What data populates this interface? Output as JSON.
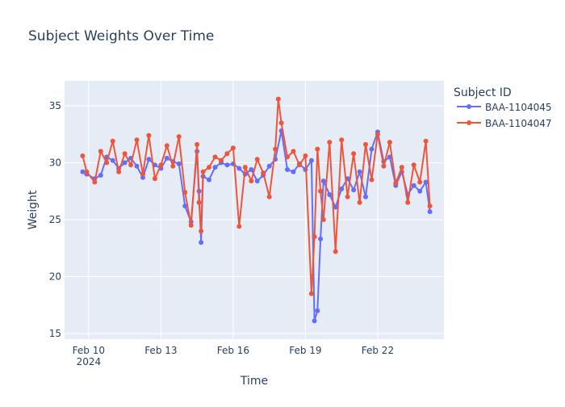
{
  "chart_data": {
    "type": "line",
    "title": "Subject Weights Over Time",
    "xlabel": "Time",
    "ylabel": "Weight",
    "xlim": [
      "2024-02-09 00:00",
      "2024-02-24 18:00"
    ],
    "ylim": [
      14.5,
      37.2
    ],
    "x_ticks": [
      {
        "value": "2024-02-10 00:00",
        "label": "Feb 10",
        "sublabel": "2024"
      },
      {
        "value": "2024-02-13 00:00",
        "label": "Feb 13"
      },
      {
        "value": "2024-02-16 00:00",
        "label": "Feb 16"
      },
      {
        "value": "2024-02-19 00:00",
        "label": "Feb 19"
      },
      {
        "value": "2024-02-22 00:00",
        "label": "Feb 22"
      }
    ],
    "y_ticks": [
      15,
      20,
      25,
      30,
      35
    ],
    "grid": true,
    "legend": {
      "title": "Subject ID",
      "position": "right"
    },
    "series": [
      {
        "name": "BAA-1104045",
        "color": "#636efa",
        "x": [
          "2024-02-09 18:00",
          "2024-02-09 22:00",
          "2024-02-10 06:00",
          "2024-02-10 12:00",
          "2024-02-10 18:00",
          "2024-02-11 00:00",
          "2024-02-11 06:00",
          "2024-02-11 12:00",
          "2024-02-11 18:00",
          "2024-02-12 00:00",
          "2024-02-12 06:00",
          "2024-02-12 12:00",
          "2024-02-12 18:00",
          "2024-02-13 00:00",
          "2024-02-13 06:00",
          "2024-02-13 12:00",
          "2024-02-13 18:00",
          "2024-02-14 00:00",
          "2024-02-14 06:00",
          "2024-02-14 12:00",
          "2024-02-14 14:00",
          "2024-02-14 16:00",
          "2024-02-14 18:00",
          "2024-02-15 00:00",
          "2024-02-15 06:00",
          "2024-02-15 12:00",
          "2024-02-15 18:00",
          "2024-02-16 00:00",
          "2024-02-16 06:00",
          "2024-02-16 12:00",
          "2024-02-16 18:00",
          "2024-02-17 00:00",
          "2024-02-17 06:00",
          "2024-02-17 12:00",
          "2024-02-17 18:00",
          "2024-02-18 00:00",
          "2024-02-18 06:00",
          "2024-02-18 12:00",
          "2024-02-18 18:00",
          "2024-02-19 00:00",
          "2024-02-19 06:00",
          "2024-02-19 09:00",
          "2024-02-19 12:00",
          "2024-02-19 15:00",
          "2024-02-19 18:00",
          "2024-02-20 00:00",
          "2024-02-20 06:00",
          "2024-02-20 12:00",
          "2024-02-20 18:00",
          "2024-02-21 00:00",
          "2024-02-21 06:00",
          "2024-02-21 12:00",
          "2024-02-21 18:00",
          "2024-02-22 00:00",
          "2024-02-22 06:00",
          "2024-02-22 12:00",
          "2024-02-22 18:00",
          "2024-02-23 00:00",
          "2024-02-23 06:00",
          "2024-02-23 12:00",
          "2024-02-23 18:00",
          "2024-02-24 00:00",
          "2024-02-24 04:00"
        ],
        "y": [
          29.2,
          29.0,
          28.6,
          28.9,
          30.5,
          30.2,
          29.5,
          30.0,
          30.4,
          29.7,
          28.7,
          30.3,
          29.8,
          29.5,
          30.4,
          30.1,
          29.9,
          26.2,
          24.8,
          31.0,
          27.5,
          23.0,
          28.8,
          28.5,
          29.6,
          30.0,
          29.8,
          29.9,
          29.5,
          29.0,
          29.4,
          28.4,
          28.9,
          29.7,
          30.3,
          32.8,
          29.4,
          29.2,
          29.9,
          29.4,
          30.2,
          16.1,
          17.0,
          23.3,
          28.4,
          27.2,
          26.1,
          27.7,
          28.6,
          27.6,
          29.2,
          27.0,
          31.2,
          32.7,
          30.1,
          30.5,
          28.0,
          29.2,
          27.2,
          28.0,
          27.5,
          28.3,
          25.7
        ]
      },
      {
        "name": "BAA-1104047",
        "color": "#ef553b",
        "x": [
          "2024-02-09 18:00",
          "2024-02-09 22:00",
          "2024-02-10 06:00",
          "2024-02-10 12:00",
          "2024-02-10 18:00",
          "2024-02-11 00:00",
          "2024-02-11 06:00",
          "2024-02-11 12:00",
          "2024-02-11 18:00",
          "2024-02-12 00:00",
          "2024-02-12 06:00",
          "2024-02-12 12:00",
          "2024-02-12 18:00",
          "2024-02-13 00:00",
          "2024-02-13 06:00",
          "2024-02-13 12:00",
          "2024-02-13 18:00",
          "2024-02-14 00:00",
          "2024-02-14 06:00",
          "2024-02-14 12:00",
          "2024-02-14 14:00",
          "2024-02-14 16:00",
          "2024-02-14 18:00",
          "2024-02-15 00:00",
          "2024-02-15 06:00",
          "2024-02-15 12:00",
          "2024-02-15 18:00",
          "2024-02-16 00:00",
          "2024-02-16 06:00",
          "2024-02-16 12:00",
          "2024-02-16 18:00",
          "2024-02-17 00:00",
          "2024-02-17 06:00",
          "2024-02-17 12:00",
          "2024-02-17 18:00",
          "2024-02-17 21:00",
          "2024-02-18 00:00",
          "2024-02-18 06:00",
          "2024-02-18 12:00",
          "2024-02-18 18:00",
          "2024-02-19 00:00",
          "2024-02-19 06:00",
          "2024-02-19 09:00",
          "2024-02-19 12:00",
          "2024-02-19 15:00",
          "2024-02-19 18:00",
          "2024-02-20 00:00",
          "2024-02-20 06:00",
          "2024-02-20 12:00",
          "2024-02-20 18:00",
          "2024-02-21 00:00",
          "2024-02-21 06:00",
          "2024-02-21 12:00",
          "2024-02-21 18:00",
          "2024-02-22 00:00",
          "2024-02-22 06:00",
          "2024-02-22 12:00",
          "2024-02-22 18:00",
          "2024-02-23 00:00",
          "2024-02-23 06:00",
          "2024-02-23 12:00",
          "2024-02-23 18:00",
          "2024-02-24 00:00",
          "2024-02-24 04:00"
        ],
        "y": [
          30.6,
          29.2,
          28.3,
          31.0,
          30.0,
          31.9,
          29.2,
          30.8,
          29.8,
          32.0,
          29.0,
          32.4,
          28.6,
          29.8,
          31.5,
          29.7,
          32.3,
          27.4,
          24.5,
          31.6,
          26.5,
          24.0,
          29.2,
          29.6,
          30.5,
          30.2,
          30.8,
          31.3,
          24.4,
          29.6,
          28.4,
          30.3,
          29.1,
          27.0,
          31.2,
          35.6,
          33.5,
          30.5,
          31.0,
          29.8,
          30.6,
          18.5,
          23.5,
          31.2,
          27.5,
          25.0,
          31.8,
          22.2,
          32.0,
          27.0,
          30.8,
          26.5,
          31.6,
          28.5,
          32.5,
          29.7,
          31.8,
          28.2,
          29.6,
          26.5,
          29.8,
          28.3,
          31.9,
          26.2
        ]
      }
    ]
  }
}
